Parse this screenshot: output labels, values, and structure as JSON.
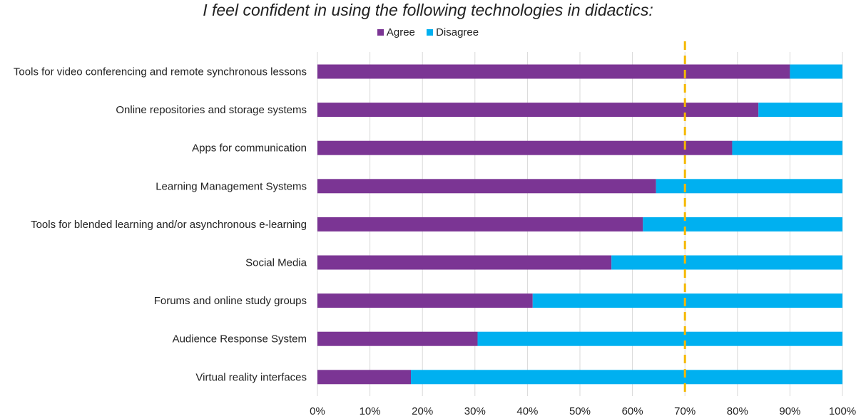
{
  "chart_data": {
    "type": "bar",
    "orientation": "horizontal",
    "stacked": true,
    "title": "I feel confident in using the following technologies in didactics:",
    "categories": [
      "Tools for video conferencing and remote synchronous lessons",
      "Online repositories and storage systems",
      "Apps for communication",
      "Learning Management Systems",
      "Tools for blended learning and/or asynchronous e-learning",
      "Social Media",
      "Forums and online study groups",
      "Audience Response System",
      "Virtual reality interfaces"
    ],
    "series": [
      {
        "name": "Agree",
        "color": "#7b3594",
        "values": [
          0.9,
          0.84,
          0.79,
          0.645,
          0.62,
          0.56,
          0.41,
          0.305,
          0.178
        ]
      },
      {
        "name": "Disagree",
        "color": "#00b0f0",
        "values": [
          0.1,
          0.16,
          0.21,
          0.355,
          0.38,
          0.44,
          0.59,
          0.695,
          0.822
        ]
      }
    ],
    "x_ticks": [
      "0%",
      "10%",
      "20%",
      "30%",
      "40%",
      "50%",
      "60%",
      "70%",
      "80%",
      "90%",
      "100%"
    ],
    "xlim": [
      0,
      1
    ],
    "grid": true,
    "legend_position": "top",
    "reference_line": {
      "value": 0.7,
      "color": "#f5b800",
      "style": "dashed"
    }
  }
}
